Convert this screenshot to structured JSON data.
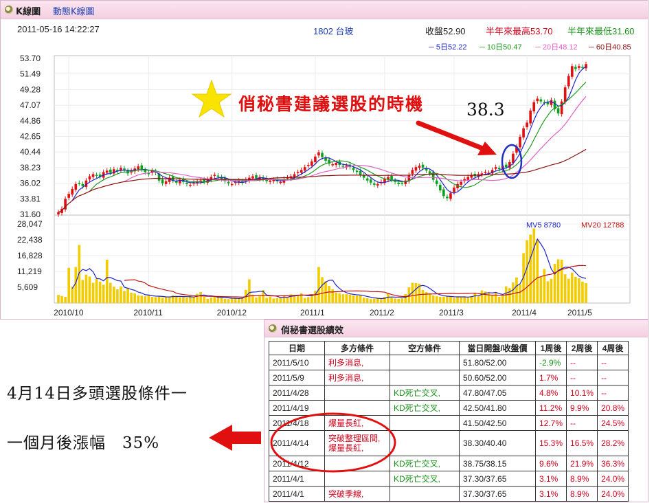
{
  "header": {
    "tab_kline": "K線圖",
    "tab_dynamic": "動態K線圖"
  },
  "info": {
    "datetime": "2011-05-16 14:22:27",
    "stock": "1802 台玻",
    "close": "收盤52.90",
    "year_high": "半年來最高53.70",
    "year_low": "半年來最低31.60"
  },
  "ma_legend": [
    "5日52.22",
    "10日50.47",
    "20日48.12",
    "60日40.85"
  ],
  "colors": {
    "ma5": "#1e24c8",
    "ma10": "#1f9a1f",
    "ma20": "#e060c8",
    "ma60": "#8b1010",
    "up": "#e01010",
    "down": "#10a020",
    "volume": "#f2cc00"
  },
  "annotation": {
    "title": "俏秘書建議選股的時機",
    "price": "38.3",
    "star_icon": "star-icon",
    "arrow_icon": "red-arrow-icon"
  },
  "volume_legend": {
    "mv5": "MV5 8780",
    "mv20": "MV20 12788"
  },
  "chart_data": {
    "type": "candlestick",
    "y_ticks": [
      "53.70",
      "51.49",
      "49.28",
      "47.07",
      "44.86",
      "42.65",
      "40.44",
      "38.23",
      "36.02",
      "33.81",
      "31.60"
    ],
    "ylim": [
      31.6,
      53.7
    ],
    "volume_ticks": [
      "28,047",
      "22,438",
      "16,828",
      "11,219",
      "5,609"
    ],
    "volume_lim": [
      0,
      28047
    ],
    "x_labels": [
      "2010/10",
      "2010/11",
      "2010/12",
      "2011/1",
      "2011/2",
      "2011/3",
      "2011/4",
      "2011/5"
    ],
    "close_series": [
      31.9,
      32.4,
      33.8,
      34.5,
      35.2,
      35.9,
      36.0,
      35.6,
      36.4,
      37.0,
      37.3,
      37.1,
      36.9,
      37.6,
      37.8,
      37.5,
      38.0,
      37.7,
      38.2,
      37.9,
      37.4,
      37.8,
      38.1,
      38.4,
      38.0,
      37.6,
      37.3,
      37.8,
      37.5,
      36.4,
      36.0,
      36.3,
      36.8,
      36.4,
      36.1,
      36.5,
      36.2,
      35.9,
      35.8,
      36.1,
      36.3,
      36.4,
      36.2,
      36.6,
      36.9,
      37.2,
      37.0,
      36.6,
      36.3,
      36.0,
      35.9,
      36.2,
      36.4,
      36.1,
      36.5,
      36.8,
      37.0,
      36.7,
      36.9,
      36.6,
      36.3,
      36.4,
      36.5,
      36.3,
      36.2,
      36.6,
      36.8,
      37.0,
      37.3,
      37.6,
      37.9,
      38.3,
      38.6,
      39.1,
      39.8,
      40.4,
      39.7,
      39.2,
      38.8,
      38.7,
      38.9,
      38.6,
      38.4,
      38.5,
      38.3,
      37.9,
      37.6,
      37.2,
      36.8,
      36.4,
      36.1,
      35.8,
      35.9,
      36.2,
      36.6,
      36.9,
      36.5,
      36.2,
      35.9,
      36.0,
      36.4,
      37.2,
      37.9,
      38.3,
      38.5,
      38.2,
      37.8,
      37.4,
      36.5,
      35.9,
      35.0,
      34.2,
      33.9,
      34.6,
      35.4,
      35.9,
      36.2,
      36.6,
      36.9,
      37.2,
      37.0,
      37.3,
      37.4,
      37.6,
      37.5,
      37.9,
      38.3,
      38.0,
      38.5,
      38.3,
      39.0,
      40.2,
      41.2,
      42.6,
      43.8,
      44.6,
      46.3,
      47.5,
      48.0,
      47.6,
      47.4,
      47.2,
      47.8,
      46.5,
      45.9,
      47.6,
      49.6,
      51.2,
      52.6,
      52.2,
      52.6,
      52.4,
      52.9
    ],
    "volume_series": [
      2900,
      2500,
      2200,
      12500,
      5800,
      12800,
      20600,
      8200,
      10100,
      9400,
      7200,
      8600,
      7600,
      6500,
      15400,
      7200,
      5800,
      4900,
      5900,
      4300,
      5300,
      3700,
      3400,
      2700,
      2600,
      2400,
      3000,
      2200,
      2100,
      2500,
      1900,
      2300,
      2000,
      2800,
      2600,
      2000,
      2100,
      1900,
      2500,
      2200,
      3300,
      3900,
      2200,
      1500,
      1900,
      2400,
      2100,
      1800,
      1500,
      1400,
      1700,
      1900,
      1600,
      1900,
      4700,
      8400,
      2900,
      1900,
      2800,
      4600,
      1800,
      2300,
      1600,
      1800,
      2100,
      2700,
      2200,
      3100,
      2600,
      2800,
      3500,
      1800,
      2100,
      3100,
      4400,
      12800,
      9200,
      7700,
      6100,
      4900,
      3700,
      3400,
      3100,
      3200,
      3000,
      2700,
      2600,
      2800,
      1900,
      1700,
      1400,
      1600,
      1800,
      1400,
      2200,
      3400,
      1900,
      1600,
      1500,
      1700,
      3200,
      5600,
      7200,
      7100,
      6900,
      4600,
      3900,
      3400,
      2700,
      2400,
      2200,
      2300,
      2600,
      2200,
      1800,
      2100,
      2300,
      2400,
      1900,
      2500,
      3600,
      2700,
      4500,
      4100,
      3600,
      2900,
      3900,
      2200,
      2600,
      5900,
      5300,
      7300,
      9100,
      6600,
      17700,
      22300,
      24300,
      26500,
      22600,
      9200,
      12100,
      7700,
      8600,
      13900,
      15500,
      15400,
      10200,
      8600,
      10800,
      9300,
      8800,
      7600,
      7100
    ],
    "annotation_price": 38.3
  },
  "table": {
    "title": "俏秘書選股績效",
    "headers": [
      "日期",
      "多方條件",
      "空方條件",
      "當日開盤/收盤價",
      "1周後",
      "2周後",
      "4周後"
    ],
    "rows": [
      [
        "2011/5/10",
        "利多消息,",
        "",
        "51.80/52.00",
        "-2.9%",
        "--",
        "--"
      ],
      [
        "2011/5/9",
        "利多消息,",
        "",
        "50.60/52.00",
        "1.7%",
        "--",
        "--"
      ],
      [
        "2011/4/28",
        "",
        "KD死亡交叉,",
        "47.80/47.05",
        "4.8%",
        "10.1%",
        "--"
      ],
      [
        "2011/4/19",
        "",
        "KD死亡交叉,",
        "42.50/41.80",
        "11.2%",
        "9.9%",
        "20.8%"
      ],
      [
        "2011/4/18",
        "爆量長紅,",
        "",
        "41.50/42.50",
        "12.7%",
        "--",
        "24.5%"
      ],
      [
        "2011/4/14",
        "突破整理區間,\n爆量長紅,",
        "",
        "38.30/40.40",
        "15.3%",
        "16.5%",
        "28.2%"
      ],
      [
        "2011/4/12",
        "",
        "KD死亡交叉,",
        "38.75/38.15",
        "9.6%",
        "21.9%",
        "36.3%"
      ],
      [
        "2011/4/1",
        "",
        "KD死亡交叉,",
        "37.30/37.65",
        "3.1%",
        "8.9%",
        "24.0%"
      ],
      [
        "2011/4/1",
        "突破季線,",
        "",
        "37.30/37.65",
        "3.1%",
        "8.9%",
        "24.0%"
      ]
    ]
  },
  "caption": {
    "line1": "4月14日多頭選股條件一",
    "line2": "一個月後漲幅　35%"
  }
}
